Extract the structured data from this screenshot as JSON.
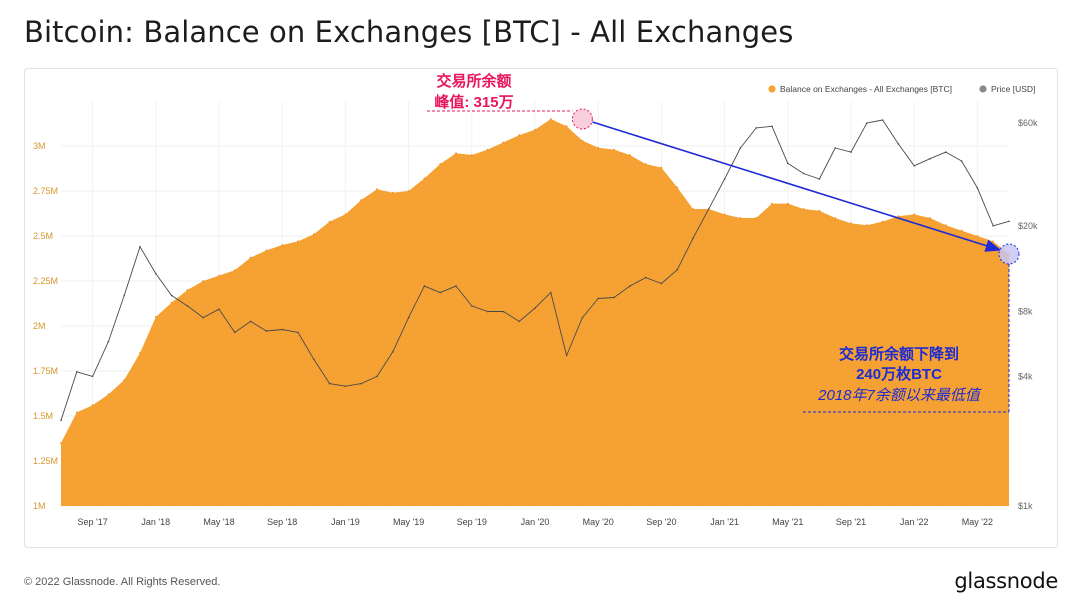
{
  "title": "Bitcoin: Balance on Exchanges [BTC] - All Exchanges",
  "footer": {
    "copyright": "© 2022 Glassnode. All Rights Reserved.",
    "logo": "glassnode"
  },
  "watermark": "glassnode",
  "colors": {
    "balance": "#f7a334",
    "price": "#8a8a8a",
    "arrow": "#1f2bd6",
    "peak_label": "#e8155f",
    "low_label": "#1d2bd3",
    "axis_left": "#d8962e"
  },
  "annotations": {
    "peak": {
      "line1": "交易所余额",
      "line2": "峰值: 315万"
    },
    "low": {
      "line1": "交易所余额下降到",
      "line2": "240万枚BTC",
      "line3": "2018年7余额以来最低值"
    }
  },
  "chart_data": {
    "type": "area",
    "title": "Bitcoin: Balance on Exchanges [BTC] - All Exchanges",
    "legend_position": "top-right",
    "grid": true,
    "x_range": [
      "2017-07",
      "2022-07"
    ],
    "x_tick_labels": [
      "Sep '17",
      "Jan '18",
      "May '18",
      "Sep '18",
      "Jan '19",
      "May '19",
      "Sep '19",
      "Jan '20",
      "May '20",
      "Sep '20",
      "Jan '21",
      "May '21",
      "Sep '21",
      "Jan '22",
      "May '22"
    ],
    "y_left": {
      "ylim": [
        1000000,
        3250000
      ],
      "ticks": [
        1000000,
        1250000,
        1500000,
        1750000,
        2000000,
        2250000,
        2500000,
        2750000,
        3000000
      ],
      "tick_labels": [
        "1M",
        "1.25M",
        "1.5M",
        "1.75M",
        "2M",
        "2.25M",
        "2.5M",
        "2.75M",
        "3M"
      ]
    },
    "y_right": {
      "scale": "log",
      "ticks": [
        1000,
        4000,
        8000,
        20000,
        60000
      ],
      "tick_labels": [
        "$1k",
        "$4k",
        "$8k",
        "$20k",
        "$60k"
      ]
    },
    "series": [
      {
        "name": "Balance on Exchanges - All Exchanges [BTC]",
        "axis": "left",
        "type": "area",
        "x": [
          "2017-07",
          "2017-08",
          "2017-09",
          "2017-10",
          "2017-11",
          "2017-12",
          "2018-01",
          "2018-02",
          "2018-03",
          "2018-04",
          "2018-05",
          "2018-06",
          "2018-07",
          "2018-08",
          "2018-09",
          "2018-10",
          "2018-11",
          "2018-12",
          "2019-01",
          "2019-02",
          "2019-03",
          "2019-04",
          "2019-05",
          "2019-06",
          "2019-07",
          "2019-08",
          "2019-09",
          "2019-10",
          "2019-11",
          "2019-12",
          "2020-01",
          "2020-02",
          "2020-03",
          "2020-04",
          "2020-05",
          "2020-06",
          "2020-07",
          "2020-08",
          "2020-09",
          "2020-10",
          "2020-11",
          "2020-12",
          "2021-01",
          "2021-02",
          "2021-03",
          "2021-04",
          "2021-05",
          "2021-06",
          "2021-07",
          "2021-08",
          "2021-09",
          "2021-10",
          "2021-11",
          "2021-12",
          "2022-01",
          "2022-02",
          "2022-03",
          "2022-04",
          "2022-05",
          "2022-06",
          "2022-07"
        ],
        "values": [
          1350000,
          1520000,
          1560000,
          1620000,
          1700000,
          1850000,
          2050000,
          2130000,
          2200000,
          2250000,
          2280000,
          2310000,
          2380000,
          2420000,
          2450000,
          2470000,
          2510000,
          2580000,
          2620000,
          2700000,
          2760000,
          2740000,
          2750000,
          2820000,
          2900000,
          2960000,
          2950000,
          2980000,
          3020000,
          3060000,
          3090000,
          3150000,
          3110000,
          3030000,
          2990000,
          2980000,
          2950000,
          2900000,
          2880000,
          2770000,
          2650000,
          2650000,
          2620000,
          2600000,
          2600000,
          2680000,
          2680000,
          2650000,
          2640000,
          2600000,
          2570000,
          2560000,
          2580000,
          2610000,
          2620000,
          2600000,
          2560000,
          2530000,
          2500000,
          2470000,
          2400000
        ]
      },
      {
        "name": "Price [USD]",
        "axis": "right",
        "type": "line",
        "x": [
          "2017-07",
          "2017-08",
          "2017-09",
          "2017-10",
          "2017-11",
          "2017-12",
          "2018-01",
          "2018-02",
          "2018-03",
          "2018-04",
          "2018-05",
          "2018-06",
          "2018-07",
          "2018-08",
          "2018-09",
          "2018-10",
          "2018-11",
          "2018-12",
          "2019-01",
          "2019-02",
          "2019-03",
          "2019-04",
          "2019-05",
          "2019-06",
          "2019-07",
          "2019-08",
          "2019-09",
          "2019-10",
          "2019-11",
          "2019-12",
          "2020-01",
          "2020-02",
          "2020-03",
          "2020-04",
          "2020-05",
          "2020-06",
          "2020-07",
          "2020-08",
          "2020-09",
          "2020-10",
          "2020-11",
          "2020-12",
          "2021-01",
          "2021-02",
          "2021-03",
          "2021-04",
          "2021-05",
          "2021-06",
          "2021-07",
          "2021-08",
          "2021-09",
          "2021-10",
          "2021-11",
          "2021-12",
          "2022-01",
          "2022-02",
          "2022-03",
          "2022-04",
          "2022-05",
          "2022-06",
          "2022-07"
        ],
        "values": [
          2500,
          4200,
          4000,
          5800,
          9500,
          16000,
          12000,
          9500,
          8500,
          7500,
          8200,
          6400,
          7200,
          6500,
          6600,
          6400,
          4800,
          3700,
          3600,
          3700,
          4000,
          5200,
          7500,
          10500,
          9800,
          10500,
          8500,
          8000,
          8000,
          7200,
          8300,
          9800,
          5000,
          7500,
          9200,
          9300,
          10500,
          11500,
          10800,
          12500,
          17500,
          24000,
          33000,
          46000,
          57000,
          58000,
          39000,
          35000,
          33000,
          46000,
          44000,
          60000,
          62000,
          48000,
          38000,
          41000,
          44000,
          40000,
          30000,
          20000,
          21000
        ]
      }
    ],
    "annotations": [
      {
        "label": "峰值: 315万",
        "x": "2020-04",
        "y": 3150000
      },
      {
        "label": "240万枚BTC",
        "x": "2022-07",
        "y": 2400000
      }
    ]
  }
}
